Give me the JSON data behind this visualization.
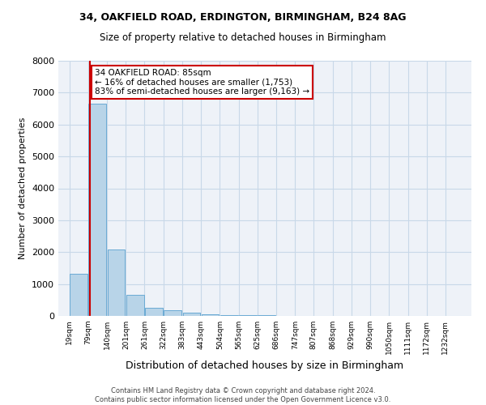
{
  "title1": "34, OAKFIELD ROAD, ERDINGTON, BIRMINGHAM, B24 8AG",
  "title2": "Size of property relative to detached houses in Birmingham",
  "xlabel": "Distribution of detached houses by size in Birmingham",
  "ylabel": "Number of detached properties",
  "footer1": "Contains HM Land Registry data © Crown copyright and database right 2024.",
  "footer2": "Contains public sector information licensed under the Open Government Licence v3.0.",
  "annotation_line1": "34 OAKFIELD ROAD: 85sqm",
  "annotation_line2": "← 16% of detached houses are smaller (1,753)",
  "annotation_line3": "83% of semi-detached houses are larger (9,163) →",
  "property_size": 85,
  "bar_color": "#b8d4e8",
  "bar_edge_color": "#6aaad4",
  "red_line_color": "#cc0000",
  "annotation_box_color": "#ffffff",
  "annotation_box_edge": "#cc0000",
  "grid_color": "#c8d8e8",
  "bg_color": "#eef2f8",
  "bin_labels": [
    "19sqm",
    "79sqm",
    "140sqm",
    "201sqm",
    "261sqm",
    "322sqm",
    "383sqm",
    "443sqm",
    "504sqm",
    "565sqm",
    "625sqm",
    "686sqm",
    "747sqm",
    "807sqm",
    "868sqm",
    "929sqm",
    "990sqm",
    "1050sqm",
    "1111sqm",
    "1172sqm",
    "1232sqm"
  ],
  "bin_edges": [
    19,
    79,
    140,
    201,
    261,
    322,
    383,
    443,
    504,
    565,
    625,
    686,
    747,
    807,
    868,
    929,
    990,
    1050,
    1111,
    1172,
    1232
  ],
  "bar_heights": [
    1330,
    6650,
    2080,
    660,
    265,
    175,
    95,
    55,
    35,
    20,
    15,
    10,
    8,
    5,
    4,
    3,
    2,
    2,
    1,
    1,
    0
  ],
  "ylim": [
    0,
    8000
  ],
  "yticks": [
    0,
    1000,
    2000,
    3000,
    4000,
    5000,
    6000,
    7000,
    8000
  ]
}
